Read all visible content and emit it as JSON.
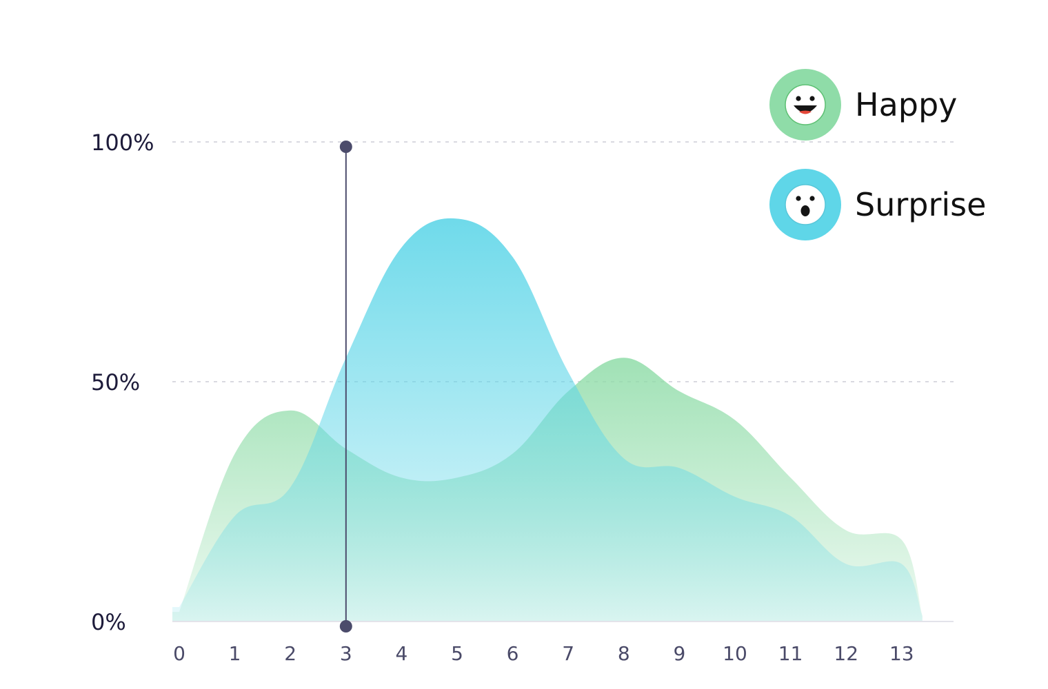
{
  "chart_data": {
    "type": "area",
    "x": [
      0,
      1,
      2,
      3,
      4,
      5,
      6,
      7,
      8,
      9,
      10,
      11,
      12,
      13
    ],
    "xlim": [
      0,
      13.5
    ],
    "ylim": [
      0,
      100
    ],
    "y_ticks": [
      {
        "value": 0,
        "label": "0%"
      },
      {
        "value": 50,
        "label": "50%"
      },
      {
        "value": 100,
        "label": "100%"
      }
    ],
    "grid": "horizontal-dashed",
    "legend_placement": "top-right",
    "marker_x": 3,
    "series": [
      {
        "name": "Happy",
        "color": "#8fdca8",
        "icon": "happy-face-icon",
        "values": [
          2,
          35,
          44,
          36,
          30,
          30,
          35,
          48,
          55,
          48,
          42,
          30,
          19,
          17
        ]
      },
      {
        "name": "Surprise",
        "color": "#5fd6e8",
        "icon": "surprised-face-icon",
        "values": [
          3,
          22,
          28,
          55,
          78,
          84,
          76,
          52,
          34,
          32,
          26,
          22,
          12,
          12
        ]
      }
    ]
  }
}
